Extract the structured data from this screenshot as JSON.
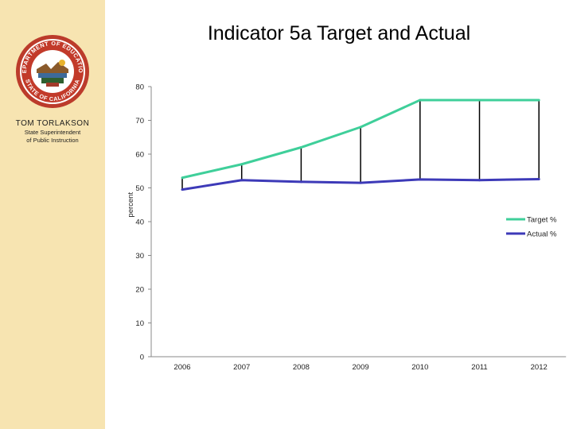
{
  "slide": {
    "title": "Indicator 5a Target and Actual",
    "person_name": "TOM TORLAKSON",
    "person_title_line1": "State Superintendent",
    "person_title_line2": "of Public Instruction",
    "seal_text_top": "DEPARTMENT OF EDUCATION",
    "seal_text_bottom": "STATE OF CALIFORNIA"
  },
  "colors": {
    "sidebar": "#f7e4b1",
    "target": "#3fcf9a",
    "actual": "#3d3ab8"
  },
  "chart_data": {
    "type": "line",
    "title": "Indicator 5a Target and Actual",
    "xlabel": "",
    "ylabel": "percent",
    "categories": [
      "2006",
      "2007",
      "2008",
      "2009",
      "2010",
      "2011",
      "2012"
    ],
    "series": [
      {
        "name": "Target %",
        "values": [
          53,
          57,
          62,
          68,
          76,
          76,
          76
        ]
      },
      {
        "name": "Actual %",
        "values": [
          49.5,
          52.3,
          51.8,
          51.5,
          52.5,
          52.3,
          52.6
        ]
      }
    ],
    "yticks": [
      "0",
      "10",
      "20",
      "30",
      "40",
      "50",
      "60",
      "70",
      "80"
    ],
    "ylim": [
      0,
      80
    ],
    "grid": false,
    "legend_position": "right",
    "drop_lines": true
  }
}
